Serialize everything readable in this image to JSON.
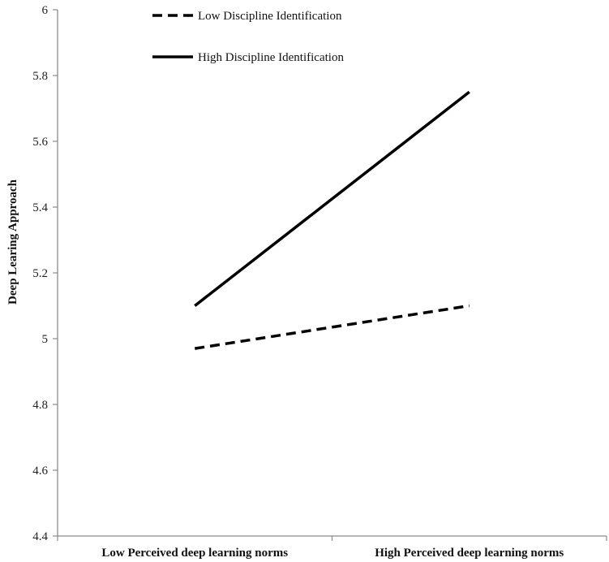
{
  "chart_data": {
    "type": "line",
    "categories": [
      "Low Perceived deep learning norms",
      "High Perceived deep learning norms"
    ],
    "series": [
      {
        "name": "Low Discipline Identification",
        "values": [
          4.97,
          5.1
        ],
        "style": "dashed",
        "color": "#000000"
      },
      {
        "name": "High Discipline Identification",
        "values": [
          5.1,
          5.75
        ],
        "style": "solid",
        "color": "#000000"
      }
    ],
    "ylabel": "Deep Learing Approach",
    "xlabel": "",
    "ylim": [
      4.4,
      6
    ],
    "yticks": [
      "4.4",
      "4.6",
      "4.8",
      "5",
      "5.2",
      "5.4",
      "5.6",
      "5.8",
      "6"
    ],
    "grid": false,
    "legend_position": "top"
  }
}
